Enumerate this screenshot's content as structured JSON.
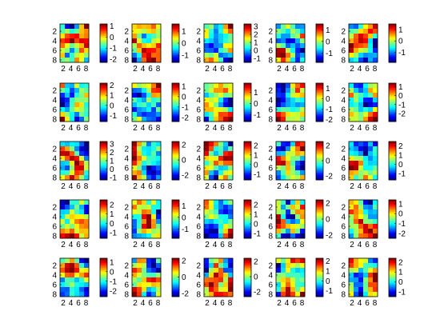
{
  "chart_data": {
    "type": "heatmap",
    "layout": {
      "rows": 5,
      "cols": 5
    },
    "heatmap_grid": {
      "rows": 8,
      "cols": 6
    },
    "colormap": "jet",
    "panel_row_y_ticks": [
      "2",
      "4",
      "6",
      "8"
    ],
    "panel_x_ticks": [
      "2",
      "4",
      "6",
      "8"
    ],
    "colorbars": [
      {
        "panel": 1,
        "range": [
          -2.3,
          1.2
        ],
        "ticks": [
          "1",
          "0",
          "-1",
          "-2"
        ]
      },
      {
        "panel": 2,
        "range": [
          -1.6,
          1.6
        ],
        "ticks": [
          "1",
          "0",
          "-1"
        ]
      },
      {
        "panel": 3,
        "range": [
          -1.5,
          3.3
        ],
        "ticks": [
          "3",
          "2",
          "1",
          "0",
          "-1"
        ]
      },
      {
        "panel": 4,
        "range": [
          -1.8,
          1.5
        ],
        "ticks": [
          "1",
          "0",
          "-1"
        ]
      },
      {
        "panel": 5,
        "range": [
          -1.9,
          1.5
        ],
        "ticks": [
          "1",
          "0",
          "-1"
        ]
      },
      {
        "panel": 6,
        "range": [
          -1.6,
          2.2
        ],
        "ticks": [
          "2",
          "1",
          "0",
          "-1"
        ]
      },
      {
        "panel": 7,
        "range": [
          -2.4,
          1.3
        ],
        "ticks": [
          "1",
          "0",
          "-1",
          "-2"
        ]
      },
      {
        "panel": 8,
        "range": [
          -1.6,
          1.8
        ],
        "ticks": [
          "1",
          "0",
          "-1"
        ]
      },
      {
        "panel": 9,
        "range": [
          -2.2,
          1.5
        ],
        "ticks": [
          "1",
          "0",
          "-1",
          "-2"
        ]
      },
      {
        "panel": 10,
        "range": [
          -2.9,
          1.4
        ],
        "ticks": [
          "1",
          "0",
          "-1",
          "-2"
        ]
      },
      {
        "panel": 11,
        "range": [
          -1.3,
          3.3
        ],
        "ticks": [
          "3",
          "2",
          "1",
          "0",
          "-1"
        ]
      },
      {
        "panel": 12,
        "range": [
          -2.6,
          2.4
        ],
        "ticks": [
          "2",
          "0",
          "-2"
        ]
      },
      {
        "panel": 13,
        "range": [
          -1.6,
          2.4
        ],
        "ticks": [
          "2",
          "1",
          "0",
          "-1"
        ]
      },
      {
        "panel": 14,
        "range": [
          -2.5,
          2.5
        ],
        "ticks": [
          "2",
          "0",
          "-2"
        ]
      },
      {
        "panel": 15,
        "range": [
          -1.7,
          2.5
        ],
        "ticks": [
          "2",
          "1",
          "0",
          "-1"
        ]
      },
      {
        "panel": 16,
        "range": [
          -1.6,
          2.5
        ],
        "ticks": [
          "2",
          "1",
          "0",
          "-1"
        ]
      },
      {
        "panel": 17,
        "range": [
          -1.8,
          1.5
        ],
        "ticks": [
          "1",
          "0",
          "-1"
        ]
      },
      {
        "panel": 18,
        "range": [
          -1.5,
          2.5
        ],
        "ticks": [
          "2",
          "1",
          "0",
          "-1"
        ]
      },
      {
        "panel": 19,
        "range": [
          -2.4,
          2.4
        ],
        "ticks": [
          "2",
          "0",
          "-2"
        ]
      },
      {
        "panel": 20,
        "range": [
          -2.5,
          1.4
        ],
        "ticks": [
          "1",
          "0",
          "-1",
          "-2"
        ]
      },
      {
        "panel": 21,
        "range": [
          -2.6,
          1.4
        ],
        "ticks": [
          "1",
          "0",
          "-1",
          "-2"
        ]
      },
      {
        "panel": 22,
        "range": [
          -2.4,
          2.3
        ],
        "ticks": [
          "2",
          "0",
          "-2"
        ]
      },
      {
        "panel": 23,
        "range": [
          -2.6,
          2.4
        ],
        "ticks": [
          "2",
          "0",
          "-2"
        ]
      },
      {
        "panel": 24,
        "range": [
          -1.6,
          2.3
        ],
        "ticks": [
          "2",
          "1",
          "0",
          "-1"
        ]
      },
      {
        "panel": 25,
        "range": [
          -1.5,
          2.4
        ],
        "ticks": [
          "2",
          "1",
          "0",
          "-1"
        ]
      }
    ]
  }
}
